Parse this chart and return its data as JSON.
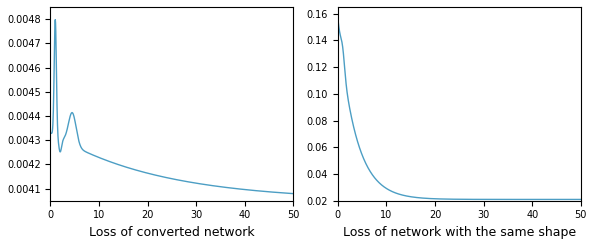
{
  "title1": "Loss of converted network",
  "title2": "Loss of network with the same shape",
  "line_color": "#4C9EC4",
  "xlim": [
    0,
    50
  ],
  "ylim1": [
    0.00405,
    0.00485
  ],
  "ylim2": [
    0.02,
    0.165
  ],
  "figsize": [
    5.94,
    2.46
  ],
  "dpi": 100,
  "title_fontsize": 9,
  "linewidth": 1.0
}
